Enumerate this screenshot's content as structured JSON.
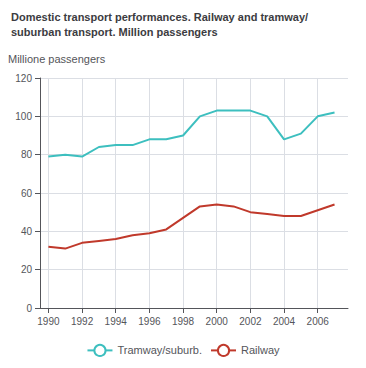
{
  "chart_data": {
    "type": "line",
    "title": "Domestic transport performances. Railway and tramway/\nsuburban transport. Million passengers",
    "ylabel": "Millione passengers",
    "x": [
      1990,
      1991,
      1992,
      1993,
      1994,
      1995,
      1996,
      1997,
      1998,
      1999,
      2000,
      2001,
      2002,
      2003,
      2004,
      2005,
      2006,
      2007
    ],
    "series": [
      {
        "name": "Tramway/suburb.",
        "color": "#3dbfbf",
        "values": [
          79,
          80,
          79,
          84,
          85,
          85,
          88,
          88,
          90,
          100,
          103,
          103,
          103,
          100,
          88,
          91,
          100,
          102
        ]
      },
      {
        "name": "Railway",
        "color": "#c0392b",
        "values": [
          32,
          31,
          34,
          35,
          36,
          38,
          39,
          41,
          47,
          53,
          54,
          53,
          50,
          49,
          48,
          48,
          51,
          54
        ]
      }
    ],
    "xlim": [
      1989.5,
      2007.8
    ],
    "xticks": [
      1990,
      1992,
      1994,
      1996,
      1998,
      2000,
      2002,
      2004,
      2006
    ],
    "ylim": [
      0,
      120
    ],
    "yticks": [
      0,
      20,
      40,
      60,
      80,
      100,
      120
    ],
    "grid": true,
    "legend": "bottom"
  }
}
